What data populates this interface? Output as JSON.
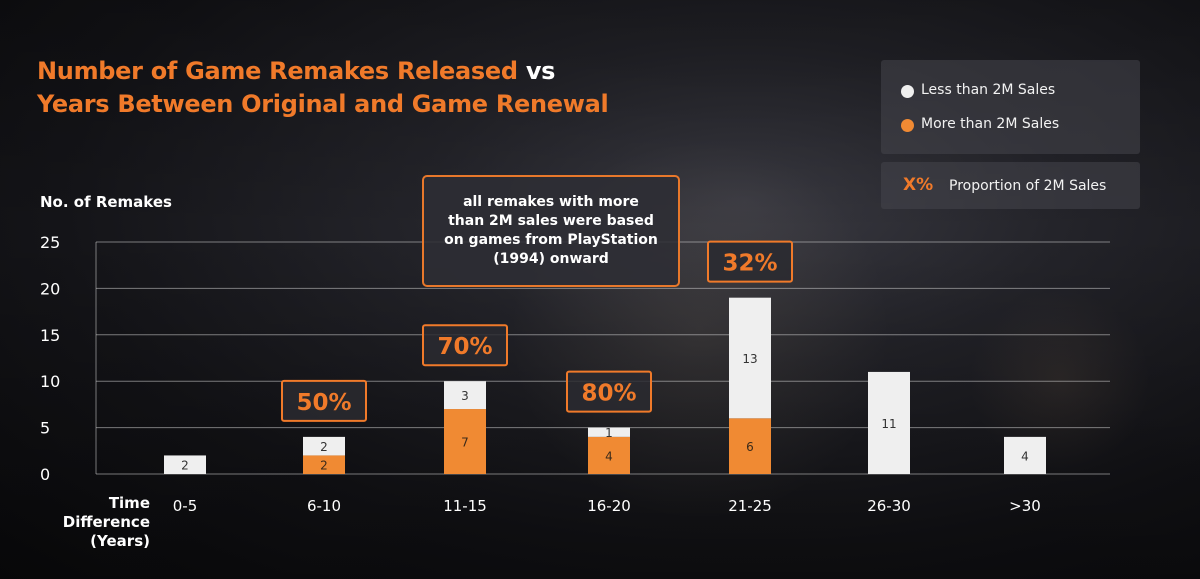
{
  "title": {
    "line1_prefix": "Number of Game Remakes Released",
    "line1_vs": "vs",
    "line2": "Years Between Original and Game Renewal"
  },
  "legend": {
    "less_label": "Less than 2M Sales",
    "more_label": "More than 2M Sales",
    "proportion_symbol": "X%",
    "proportion_label": "Proportion of 2M Sales"
  },
  "callout": {
    "text": "all remakes with more than 2M sales were based on games from PlayStation (1994) onward"
  },
  "colors": {
    "less": "#efefef",
    "more": "#f08a33",
    "accent": "#f07a2a",
    "grid": "#cfcfcf"
  },
  "chart_data": {
    "type": "bar",
    "stacked": true,
    "title": "Number of Game Remakes Released vs Years Between Original and Game Renewal",
    "ylabel": "No. of Remakes",
    "xlabel": "Time Difference (Years)",
    "ylim": [
      0,
      25
    ],
    "yticks": [
      0,
      5,
      10,
      15,
      20,
      25
    ],
    "grid": true,
    "legend_position": "top-right",
    "categories": [
      "0-5",
      "6-10",
      "11-15",
      "16-20",
      "21-25",
      "26-30",
      ">30"
    ],
    "series": [
      {
        "name": "More than 2M Sales",
        "values": [
          0,
          2,
          7,
          4,
          6,
          0,
          0
        ]
      },
      {
        "name": "Less than 2M Sales",
        "values": [
          2,
          2,
          3,
          1,
          13,
          11,
          4
        ]
      }
    ],
    "proportions": [
      "",
      "50%",
      "70%",
      "80%",
      "32%",
      "",
      ""
    ]
  }
}
